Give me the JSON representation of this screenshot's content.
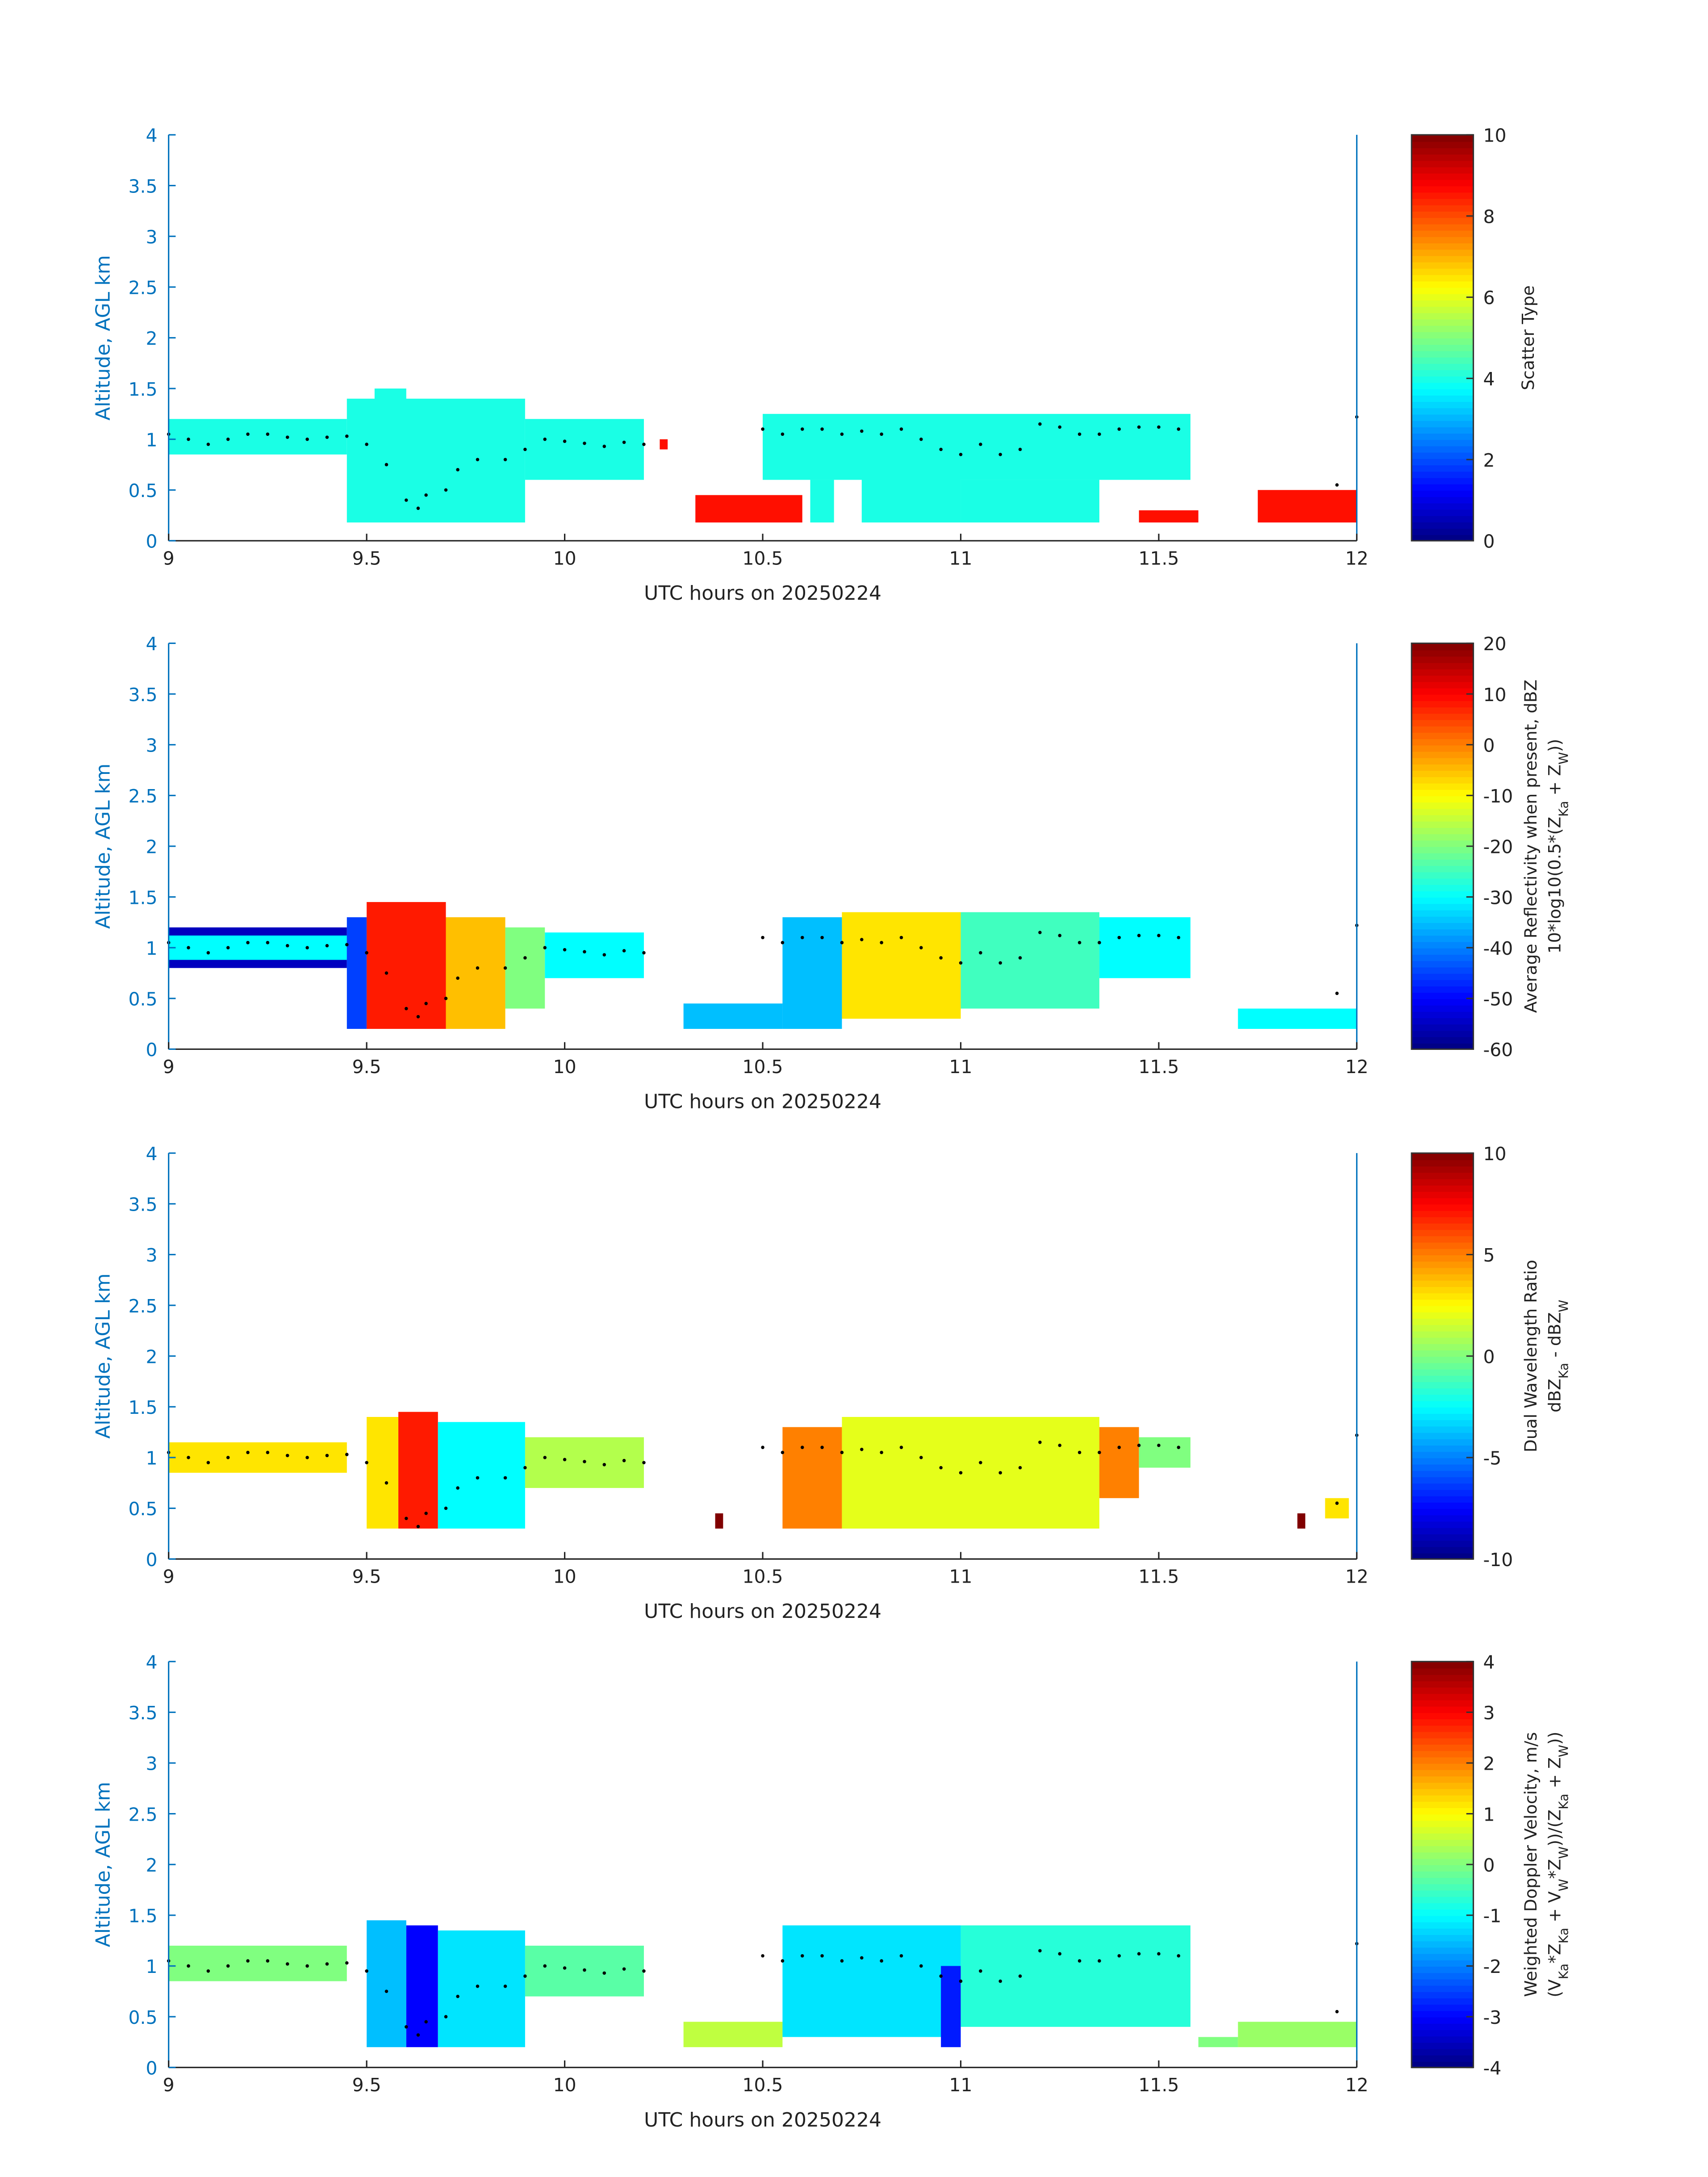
{
  "chart_data": [
    {
      "type": "heatmap",
      "xlabel": "UTC hours on 20250224",
      "ylabel": "Altitude, AGL km",
      "xlim": [
        9,
        12
      ],
      "ylim": [
        0,
        4
      ],
      "xticks": [
        "9",
        "9.5",
        "10",
        "10.5",
        "11",
        "11.5",
        "12"
      ],
      "yticks": [
        "0",
        "0.5",
        "1",
        "1.5",
        "2",
        "2.5",
        "3",
        "3.5",
        "4"
      ],
      "colorbar": {
        "label": [
          "Scatter Type"
        ],
        "range": [
          0,
          10
        ],
        "ticks": [
          "0",
          "2",
          "4",
          "6",
          "8",
          "10"
        ],
        "tick_values": [
          0,
          2,
          4,
          6,
          8,
          10
        ]
      },
      "regions": [
        [
          9.0,
          9.45,
          0.85,
          1.2,
          4
        ],
        [
          9.45,
          9.9,
          0.18,
          1.4,
          4
        ],
        [
          9.52,
          9.6,
          1.3,
          1.5,
          4
        ],
        [
          9.9,
          10.2,
          0.6,
          1.2,
          4
        ],
        [
          10.24,
          10.26,
          0.9,
          1.0,
          8.6
        ],
        [
          10.33,
          10.6,
          0.18,
          0.45,
          8.6
        ],
        [
          10.5,
          11.58,
          0.6,
          1.25,
          4
        ],
        [
          10.62,
          10.68,
          0.18,
          0.6,
          4
        ],
        [
          10.75,
          11.0,
          0.18,
          0.8,
          4
        ],
        [
          11.0,
          11.35,
          0.18,
          0.6,
          4
        ],
        [
          11.45,
          11.6,
          0.18,
          0.3,
          8.6
        ],
        [
          11.75,
          12.0,
          0.18,
          0.5,
          8.6
        ]
      ]
    },
    {
      "type": "heatmap",
      "xlabel": "UTC hours on 20250224",
      "ylabel": "Altitude, AGL km",
      "xlim": [
        9,
        12
      ],
      "ylim": [
        0,
        4
      ],
      "xticks": [
        "9",
        "9.5",
        "10",
        "10.5",
        "11",
        "11.5",
        "12"
      ],
      "yticks": [
        "0",
        "0.5",
        "1",
        "1.5",
        "2",
        "2.5",
        "3",
        "3.5",
        "4"
      ],
      "colorbar": {
        "label": [
          "Average Reflectivity when present, dBZ",
          "10*log10(0.5*(Z_Ka + Z_W))"
        ],
        "range": [
          -60,
          20
        ],
        "ticks": [
          "-60",
          "-50",
          "-40",
          "-30",
          "-20",
          "-10",
          "0",
          "10",
          "20"
        ],
        "tick_values": [
          -60,
          -50,
          -40,
          -30,
          -20,
          -10,
          0,
          10,
          20
        ]
      },
      "regions": [
        [
          9.0,
          9.45,
          0.8,
          1.2,
          -55
        ],
        [
          9.0,
          9.45,
          0.88,
          1.12,
          -30
        ],
        [
          9.45,
          9.5,
          0.2,
          1.3,
          -45
        ],
        [
          9.5,
          9.7,
          0.2,
          1.45,
          8
        ],
        [
          9.7,
          9.85,
          0.2,
          1.3,
          -5
        ],
        [
          9.85,
          9.95,
          0.4,
          1.2,
          -20
        ],
        [
          9.95,
          10.2,
          0.7,
          1.15,
          -30
        ],
        [
          10.3,
          10.55,
          0.2,
          0.45,
          -35
        ],
        [
          10.55,
          10.7,
          0.2,
          1.3,
          -35
        ],
        [
          10.7,
          11.0,
          0.3,
          1.35,
          -8
        ],
        [
          11.0,
          11.35,
          0.4,
          1.35,
          -25
        ],
        [
          11.35,
          11.58,
          0.7,
          1.3,
          -30
        ],
        [
          11.7,
          12.0,
          0.2,
          0.4,
          -30
        ]
      ]
    },
    {
      "type": "heatmap",
      "xlabel": "UTC hours on 20250224",
      "ylabel": "Altitude, AGL km",
      "xlim": [
        9,
        12
      ],
      "ylim": [
        0,
        4
      ],
      "xticks": [
        "9",
        "9.5",
        "10",
        "10.5",
        "11",
        "11.5",
        "12"
      ],
      "yticks": [
        "0",
        "0.5",
        "1",
        "1.5",
        "2",
        "2.5",
        "3",
        "3.5",
        "4"
      ],
      "colorbar": {
        "label": [
          "Dual Wavelength Ratio",
          "dBZ_Ka - dBZ_W"
        ],
        "range": [
          -10,
          10
        ],
        "ticks": [
          "-10",
          "-5",
          "0",
          "5",
          "10"
        ],
        "tick_values": [
          -10,
          -5,
          0,
          5,
          10
        ]
      },
      "regions": [
        [
          9.0,
          9.45,
          0.85,
          1.15,
          3
        ],
        [
          9.5,
          9.58,
          0.3,
          1.4,
          3
        ],
        [
          9.58,
          9.68,
          0.3,
          1.45,
          7
        ],
        [
          9.68,
          9.9,
          0.3,
          1.35,
          -2.5
        ],
        [
          9.9,
          10.2,
          0.7,
          1.2,
          1
        ],
        [
          10.38,
          10.4,
          0.3,
          0.45,
          10
        ],
        [
          10.55,
          10.7,
          0.3,
          1.3,
          5
        ],
        [
          10.7,
          11.35,
          0.3,
          1.4,
          2
        ],
        [
          11.35,
          11.45,
          0.6,
          1.3,
          5
        ],
        [
          11.45,
          11.58,
          0.9,
          1.2,
          0
        ],
        [
          11.85,
          11.87,
          0.3,
          0.45,
          10
        ],
        [
          11.92,
          11.98,
          0.4,
          0.6,
          3
        ]
      ]
    },
    {
      "type": "heatmap",
      "xlabel": "UTC hours on 20250224",
      "ylabel": "Altitude, AGL km",
      "xlim": [
        9,
        12
      ],
      "ylim": [
        0,
        4
      ],
      "xticks": [
        "9",
        "9.5",
        "10",
        "10.5",
        "11",
        "11.5",
        "12"
      ],
      "yticks": [
        "0",
        "0.5",
        "1",
        "1.5",
        "2",
        "2.5",
        "3",
        "3.5",
        "4"
      ],
      "colorbar": {
        "label": [
          "Weighted Doppler Velocity, m/s",
          "(V_Ka*Z_Ka + V_W*Z_W))/(Z_Ka + Z_W))"
        ],
        "range": [
          -4,
          4
        ],
        "ticks": [
          "-4",
          "-3",
          "-2",
          "-1",
          "0",
          "1",
          "2",
          "3",
          "4"
        ],
        "tick_values": [
          -4,
          -3,
          -2,
          -1,
          0,
          1,
          2,
          3,
          4
        ]
      },
      "regions": [
        [
          9.0,
          9.45,
          0.85,
          1.2,
          0
        ],
        [
          9.5,
          9.6,
          0.2,
          1.45,
          -1.5
        ],
        [
          9.6,
          9.68,
          0.2,
          1.4,
          -3
        ],
        [
          9.68,
          9.9,
          0.2,
          1.35,
          -1.2
        ],
        [
          9.9,
          10.2,
          0.7,
          1.2,
          -0.3
        ],
        [
          10.3,
          10.55,
          0.2,
          0.45,
          0.5
        ],
        [
          10.55,
          11.0,
          0.3,
          1.4,
          -1.2
        ],
        [
          10.95,
          11.0,
          0.2,
          1.0,
          -2.8
        ],
        [
          11.0,
          11.58,
          0.4,
          1.4,
          -0.7
        ],
        [
          11.6,
          11.7,
          0.2,
          0.3,
          0
        ],
        [
          11.7,
          12.0,
          0.2,
          0.45,
          0.2
        ]
      ]
    }
  ],
  "cloud_top": [
    [
      9.0,
      1.05
    ],
    [
      9.05,
      1.0
    ],
    [
      9.1,
      0.95
    ],
    [
      9.15,
      1.0
    ],
    [
      9.2,
      1.05
    ],
    [
      9.25,
      1.05
    ],
    [
      9.3,
      1.02
    ],
    [
      9.35,
      1.0
    ],
    [
      9.4,
      1.02
    ],
    [
      9.45,
      1.03
    ],
    [
      9.5,
      0.95
    ],
    [
      9.55,
      0.75
    ],
    [
      9.6,
      0.4
    ],
    [
      9.63,
      0.32
    ],
    [
      9.65,
      0.45
    ],
    [
      9.7,
      0.5
    ],
    [
      9.73,
      0.7
    ],
    [
      9.78,
      0.8
    ],
    [
      9.85,
      0.8
    ],
    [
      9.9,
      0.9
    ],
    [
      9.95,
      1.0
    ],
    [
      10.0,
      0.98
    ],
    [
      10.05,
      0.96
    ],
    [
      10.1,
      0.93
    ],
    [
      10.15,
      0.97
    ],
    [
      10.2,
      0.95
    ],
    [
      10.5,
      1.1
    ],
    [
      10.55,
      1.05
    ],
    [
      10.6,
      1.1
    ],
    [
      10.65,
      1.1
    ],
    [
      10.7,
      1.05
    ],
    [
      10.75,
      1.08
    ],
    [
      10.8,
      1.05
    ],
    [
      10.85,
      1.1
    ],
    [
      10.9,
      1.0
    ],
    [
      10.95,
      0.9
    ],
    [
      11.0,
      0.85
    ],
    [
      11.05,
      0.95
    ],
    [
      11.1,
      0.85
    ],
    [
      11.15,
      0.9
    ],
    [
      11.2,
      1.15
    ],
    [
      11.25,
      1.12
    ],
    [
      11.3,
      1.05
    ],
    [
      11.35,
      1.05
    ],
    [
      11.4,
      1.1
    ],
    [
      11.45,
      1.12
    ],
    [
      11.5,
      1.12
    ],
    [
      11.55,
      1.1
    ],
    [
      11.95,
      0.55
    ],
    [
      12.0,
      1.22
    ]
  ]
}
